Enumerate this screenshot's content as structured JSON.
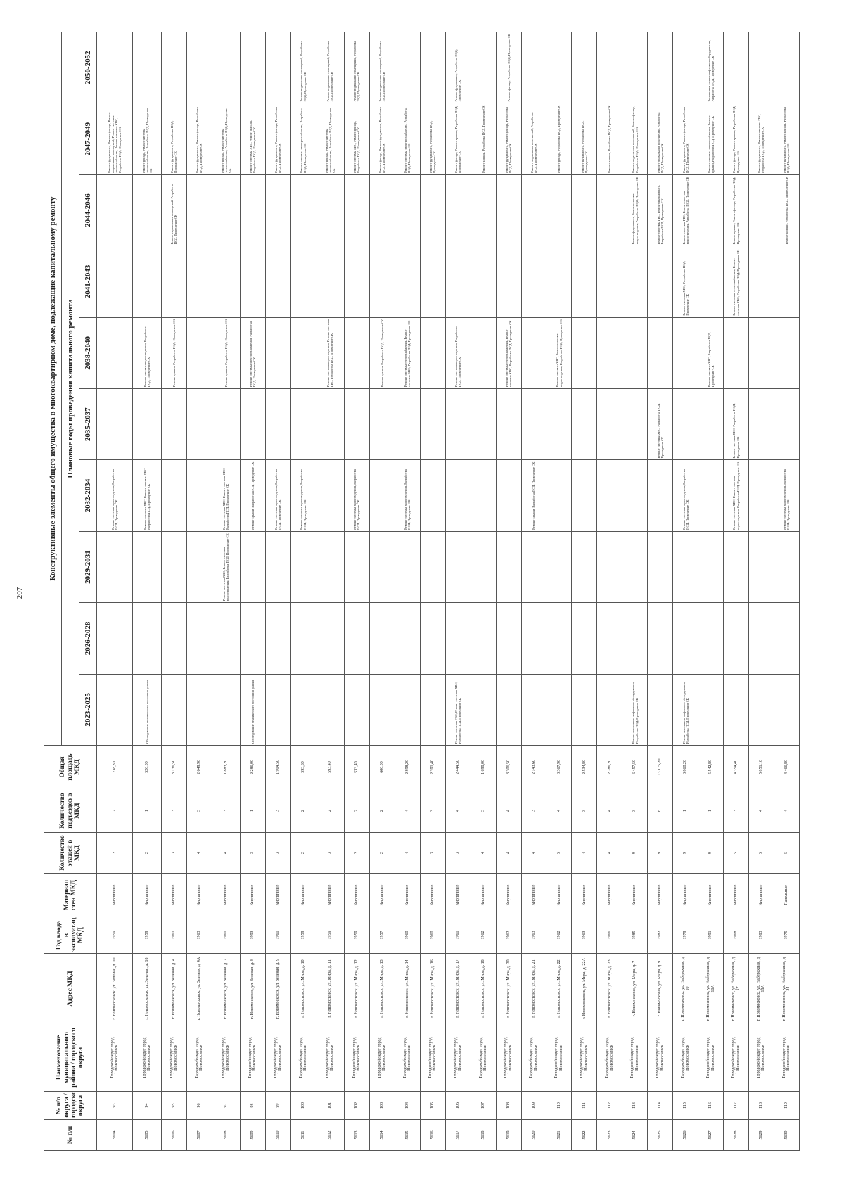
{
  "page_number": "207",
  "header": {
    "title": "Конструктивные элементы общего имущества в многоквартирном доме, подлежащие капитальному ремонту",
    "columns": [
      "№ п/п",
      "№ п/п округа / городского округа",
      "Наименование муниципального района / городского округа",
      "Адрес МКД",
      "Год ввода в эксплуатацию МКД",
      "Материал стен МКД",
      "Количество этажей в МКД",
      "Количество подъездов в МКД",
      "Общая площадь МКД"
    ],
    "years_title": "Плановые годы проведения капитального ремонта",
    "years": [
      "2023-2025",
      "2026-2028",
      "2029-2031",
      "2032-2034",
      "2035-2037",
      "2038-2040",
      "2041-2043",
      "2044-2046",
      "2047-2049",
      "2050-2052"
    ]
  },
  "table": {
    "rows": [
      [
        "5604",
        "93",
        "Городской округ город Новомосковск",
        "г. Новомосковск, ул. Зеленая, д. 10",
        "1959",
        "Кирпичные",
        "2",
        "2",
        "738,30"
      ],
      [
        "5605",
        "94",
        "Городской округ город Новомосковск",
        "г. Новомосковск, ул. Зеленая, д. 18",
        "1959",
        "Кирпичные",
        "2",
        "1",
        "520,00"
      ],
      [
        "5606",
        "95",
        "Городской округ город Новомосковск",
        "г. Новомосковск, ул. Зеленая, д. 4",
        "1961",
        "Кирпичные",
        "3",
        "3",
        "3 136,50"
      ],
      [
        "5607",
        "96",
        "Городской округ город Новомосковск",
        "г. Новомосковск, ул. Зеленая, д. 4А",
        "1963",
        "Кирпичные",
        "4",
        "3",
        "2 649,90"
      ],
      [
        "5608",
        "97",
        "Городской округ город Новомосковск",
        "г. Новомосковск, ул. Зеленая, д. 7",
        "1960",
        "Кирпичные",
        "4",
        "3",
        "1 883,20"
      ],
      [
        "5609",
        "98",
        "Городской округ город Новомосковск",
        "г. Новомосковск, ул. Зеленая, д. 8",
        "1993",
        "Кирпичные",
        "3",
        "1",
        "2 286,00"
      ],
      [
        "5610",
        "99",
        "Городской округ город Новомосковск",
        "г. Новомосковск, ул. Зеленая, д. 9",
        "1960",
        "Кирпичные",
        "3",
        "3",
        "1 904,50"
      ],
      [
        "5611",
        "100",
        "Городской округ город Новомосковск",
        "г. Новомосковск, ул. Мира, д. 10",
        "1959",
        "Кирпичные",
        "2",
        "2",
        "593,80"
      ],
      [
        "5612",
        "101",
        "Городской округ город Новомосковск",
        "г. Новомосковск, ул. Мира, д. 11",
        "1959",
        "Кирпичные",
        "3",
        "2",
        "593,40"
      ],
      [
        "5613",
        "102",
        "Городской округ город Новомосковск",
        "г. Новомосковск, ул. Мира, д. 12",
        "1959",
        "Кирпичные",
        "2",
        "2",
        "533,40"
      ],
      [
        "5614",
        "103",
        "Городской округ город Новомосковск",
        "г. Новомосковск, ул. Мира, д. 13",
        "1957",
        "Кирпичные",
        "2",
        "2",
        "600,00"
      ],
      [
        "5615",
        "104",
        "Городской округ город Новомосковск",
        "г. Новомосковск, ул. Мира, д. 14",
        "1960",
        "Кирпичные",
        "4",
        "4",
        "2 898,20"
      ],
      [
        "5616",
        "105",
        "Городской округ город Новомосковск",
        "г. Новомосковск, ул. Мира, д. 16",
        "1960",
        "Кирпичные",
        "3",
        "3",
        "2 391,40"
      ],
      [
        "5617",
        "106",
        "Городской округ город Новомосковск",
        "г. Новомосковск, ул. Мира, д. 17",
        "1960",
        "Кирпичные",
        "3",
        "4",
        "2 444,50"
      ],
      [
        "5618",
        "107",
        "Городской округ город Новомосковск",
        "г. Новомосковск, ул. Мира, д. 18",
        "1962",
        "Кирпичные",
        "4",
        "3",
        "1 698,00"
      ],
      [
        "5619",
        "108",
        "Городской округ город Новомосковск",
        "г. Новомосковск, ул. Мира, д. 20",
        "1962",
        "Кирпичные",
        "4",
        "4",
        "3 306,50"
      ],
      [
        "5620",
        "109",
        "Городской округ город Новомосковск",
        "г. Новомосковск, ул. Мира, д. 21",
        "1963",
        "Кирпичные",
        "4",
        "3",
        "2 143,60"
      ],
      [
        "5621",
        "110",
        "Городской округ город Новомосковск",
        "г. Новомосковск, ул. Мира, д. 22",
        "1962",
        "Кирпичные",
        "5",
        "4",
        "3 367,90"
      ],
      [
        "5622",
        "111",
        "Городской округ город Новомосковск",
        "г. Новомосковск, ул. Мира, д. 22А",
        "1963",
        "Кирпичные",
        "4",
        "3",
        "2 534,80"
      ],
      [
        "5623",
        "112",
        "Городской округ город Новомосковск",
        "г. Новомосковск, ул. Мира, д. 23",
        "1966",
        "Кирпичные",
        "4",
        "4",
        "2 786,20"
      ],
      [
        "5624",
        "113",
        "Городской округ город Новомосковск",
        "г. Новомосковск, ул. Мира, д. 7",
        "1985",
        "Кирпичные",
        "9",
        "3",
        "6 457,50"
      ],
      [
        "5625",
        "114",
        "Городской округ город Новомосковск",
        "г. Новомосковск, ул. Мира, д. 9",
        "1982",
        "Кирпичные",
        "9",
        "6",
        "13 175,20"
      ],
      [
        "5626",
        "115",
        "Городской округ город Новомосковск",
        "г. Новомосковск, ул. Набережная, д. 10",
        "1979",
        "Кирпичные",
        "9",
        "1",
        "3 860,20"
      ],
      [
        "5627",
        "116",
        "Городской округ город Новомосковск",
        "г. Новомосковск, ул. Набережная, д. 16А",
        "1991",
        "Кирпичные",
        "9",
        "1",
        "5 542,80"
      ],
      [
        "5628",
        "117",
        "Городской округ город Новомосковск",
        "г. Новомосковск, ул. Набережная, д. 17",
        "1968",
        "Кирпичные",
        "5",
        "3",
        "4 354,40"
      ],
      [
        "5629",
        "118",
        "Городской округ город Новомосковск",
        "г. Новомосковск, ул. Набережная, д. 18А",
        "1983",
        "Кирпичные",
        "5",
        "4",
        "5 051,10"
      ],
      [
        "5630",
        "119",
        "Городской округ город Новомосковск",
        "г. Новомосковск, ул. Набережная, д. 24",
        "1975",
        "Панельные",
        "5",
        "4",
        "4 466,80"
      ]
    ],
    "works": [
      [
        null,
        null,
        null,
        "Ремонт системы водоотведения, Разработка ПСД, Проведение СК",
        null,
        null,
        null,
        null,
        "Ремонт фундамента, Ремонт фасада, Ремонт подвальных помещений, Ремонт системы теплоснабжения, Ремонт системы ХВС, Разработка ПСД, Проведение СК",
        null
      ],
      [
        "Обследование технического состояния здания",
        null,
        null,
        "Ремонт системы ХВС, Ремонт системы ГВС, Разработка ПСД, Проведение СК",
        null,
        "Ремонт системы водоотведения, Разработка ПСД, Проведение СК",
        null,
        null,
        "Ремонт фасада, Ремонт системы теплоснабжения, Разработка ПСД, Проведение СК",
        null
      ],
      [
        null,
        null,
        null,
        null,
        null,
        "Ремонт крыши, Разработка ПСД, Проведение СК",
        null,
        "Ремонт подвальных помещений, Разработка ПСД, Проведение СК",
        "Ремонт фундамента, Разработка ПСД, Проведение СК",
        null
      ],
      [
        null,
        null,
        null,
        null,
        null,
        null,
        null,
        null,
        "Ремонт фундамента, Ремонт фасада, Разработка ПСД, Проведение СК",
        null
      ],
      [
        null,
        null,
        "Ремонт системы ХВС, Ремонт системы водоотведения, Разработка ПСД, Проведение СК",
        "Ремонт системы ХВС, Ремонт системы ГВС, Разработка ПСД, Проведение СК",
        null,
        "Ремонт крыши, Разработка ПСД, Проведение СК",
        null,
        null,
        "Ремонт фасада, Ремонт системы теплоснабжения, Разработка ПСД, Проведение СК",
        null
      ],
      [
        "Обследование технического состояния здания",
        null,
        null,
        "Ремонт крыши, Разработка ПСД, Проведение СК",
        null,
        "Ремонт системы электроснабжения, Разработка ПСД, Проведение СК",
        null,
        null,
        "Ремонт системы ХВС, Ремонт фасада, Разработка ПСД, Проведение СК",
        null
      ],
      [
        null,
        null,
        null,
        "Ремонт системы водоотведения, Разработка ПСД, Проведение СК",
        null,
        null,
        null,
        null,
        "Ремонт фундамента, Ремонт фасада, Разработка ПСД, Проведение СК",
        null
      ],
      [
        null,
        null,
        null,
        "Ремонт системы водоотведения, Разработка ПСД, Проведение СК",
        null,
        null,
        null,
        null,
        "Ремонт системы электроснабжения, Разработка ПСД, Проведение СК",
        "Ремонт подвальных помещений, Разработка ПСД, Проведение СК"
      ],
      [
        null,
        null,
        null,
        null,
        null,
        "Ремонт системы водоотведения, Ремонт системы ГВС, Разработка ПСД, Проведение СК",
        null,
        null,
        "Ремонт фасада, Ремонт системы теплоснабжения, Разработка ПСД, Проведение СК",
        "Ремонт подвальных помещений, Разработка ПСД, Проведение СК"
      ],
      [
        null,
        null,
        null,
        "Ремонт системы водоотведения, Разработка ПСД, Проведение СК",
        null,
        null,
        null,
        null,
        "Ремонт системы ГВС, Ремонт фасада, Разработка ПСД, Проведение СК",
        "Ремонт подвальных помещений, Разработка ПСД, Проведение СК"
      ],
      [
        null,
        null,
        null,
        null,
        null,
        "Ремонт крыши, Разработка ПСД, Проведение СК",
        null,
        null,
        "Ремонт фасада, Ремонт фундамента, Разработка ПСД, Проведение СК",
        "Ремонт подвальных помещений, Разработка ПСД, Проведение СК"
      ],
      [
        null,
        null,
        null,
        "Ремонт системы водоотведения, Разработка ПСД, Проведение СК",
        null,
        "Ремонт системы теплоснабжения, Ремонт системы ХВС, Разработка ПСД, Проведение СК",
        null,
        null,
        "Ремонт системы электроснабжения, Разработка ПСД, Проведение СК",
        null
      ],
      [
        null,
        null,
        null,
        null,
        null,
        null,
        null,
        null,
        "Ремонт фундамента, Разработка ПСД, Проведение СК",
        null
      ],
      [
        "Ремонт системы ГВС, Ремонт системы ХВС, Разработка ПСД, Проведение СК",
        null,
        null,
        null,
        null,
        "Ремонт системы водоотведения, Разработка ПСД, Проведение СК",
        null,
        null,
        "Ремонт фасада, Ремонт крыши, Разработка ПСД, Проведение СК",
        "Ремонт фундамента, Разработка ПСД, Проведение СК"
      ],
      [
        null,
        null,
        null,
        null,
        null,
        null,
        null,
        null,
        "Ремонт крыши, Разработка ПСД, Проведение СК",
        null
      ],
      [
        null,
        null,
        null,
        null,
        null,
        "Ремонт системы теплоснабжения, Ремонт системы ХВС, Разработка ПСД, Проведение СК",
        null,
        null,
        "Ремонт фундамента, Ремонт фасада, Разработка ПСД, Проведение СК",
        "Ремонт фасада, Разработка ПСД, Проведение СК"
      ],
      [
        null,
        null,
        null,
        "Ремонт крыши, Разработка ПСД, Проведение СК",
        null,
        null,
        null,
        null,
        "Ремонт подвальных помещений, Разработка ПСД, Проведение СК",
        null
      ],
      [
        null,
        null,
        null,
        null,
        null,
        "Ремонт системы ХВС, Ремонт системы водоотведения, Разработка ПСД, Проведение СК",
        null,
        null,
        "Ремонт фасада, Разработка ПСД, Проведение СК",
        null
      ],
      [
        null,
        null,
        null,
        null,
        null,
        null,
        null,
        null,
        "Ремонт фундамента, Разработка ПСД, Проведение СК",
        null
      ],
      [
        null,
        null,
        null,
        null,
        null,
        null,
        null,
        null,
        "Ремонт крыши, Разработка ПСД, Проведение СК",
        null
      ],
      [
        "Ремонт или замена лифтового оборудования, Разработка ПСД, Проведение СК",
        null,
        null,
        null,
        null,
        null,
        null,
        "Ремонт фундамента, Ремонт системы водоотведения, Разработка ПСД, Проведение СК",
        "Ремонт подвальных помещений, Ремонт фасада, Разработка ПСД, Проведение СК",
        null
      ],
      [
        null,
        null,
        null,
        null,
        "Ремонт системы ХВС, Разработка ПСД, Проведение СК",
        null,
        null,
        "Ремонт системы ГВС, Ремонт фундамента, Разработка ПСД, Проведение СК",
        "Ремонт подвальных помещений, Разработка ПСД, Проведение СК",
        null
      ],
      [
        "Ремонт или замена лифтового оборудования, Разработка ПСД, Проведение СК",
        null,
        null,
        "Ремонт системы водоотведения, Разработка ПСД, Проведение СК",
        null,
        null,
        "Ремонт системы ХВС, Разработка ПСД, Проведение СК",
        "Ремонт системы ГВС, Ремонт системы водоотведения, Разработка ПСД, Проведение СК",
        "Ремонт фундамента, Ремонт фасада, Разработка ПСД, Проведение СК",
        null
      ],
      [
        null,
        null,
        null,
        null,
        null,
        "Ремонт системы ХВС, Разработка ПСД, Проведение СК",
        null,
        null,
        "Ремонт системы теплоснабжения, Ремонт крыши, Разработка ПСД, Проведение СК",
        "Ремонт или замена лифтового оборудования, Разработка ПСД, Проведение СК"
      ],
      [
        null,
        null,
        null,
        "Ремонт системы ХВС, Ремонт системы водоотведения, Разработка ПСД, Проведение СК",
        "Ремонт системы ХВС, Разработка ПСД, Проведение СК",
        null,
        "Ремонт системы теплоснабжения, Ремонт системы ГВС, Разработка ПСД, Проведение СК",
        "Ремонт крыши, Ремонт фасада, Разработка ПСД, Проведение СК",
        "Ремонт фасада, Ремонт крыши, Разработка ПСД, Проведение СК",
        null
      ],
      [
        null,
        null,
        null,
        null,
        null,
        null,
        null,
        null,
        "Ремонт фундамента, Ремонт системы ГВС, Разработка ПСД, Проведение СК",
        null
      ],
      [
        null,
        null,
        null,
        "Ремонт системы водоотведения, Разработка ПСД, Проведение СК",
        null,
        null,
        null,
        "Ремонт крыши, Разработка ПСД, Проведение СК",
        "Ремонт фундамента, Ремонт фасада, Разработка ПСД, Проведение СК",
        null
      ]
    ]
  }
}
